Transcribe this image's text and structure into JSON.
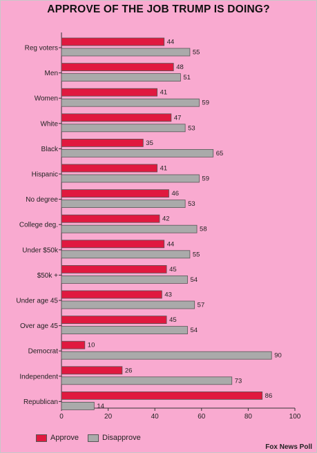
{
  "chart_data": {
    "type": "bar",
    "orientation": "horizontal",
    "title": "APPROVE OF THE JOB TRUMP IS DOING?",
    "source": "Fox News Poll",
    "categories": [
      "Reg voters",
      "Men",
      "Women",
      "White",
      "Black",
      "Hispanic",
      "No degree",
      "College deg.",
      "Under $50k",
      "$50k +",
      "Under age 45",
      "Over age 45",
      "Democrat",
      "Independent",
      "Republican"
    ],
    "series": [
      {
        "name": "Approve",
        "color": "#e0193f",
        "values": [
          44,
          48,
          41,
          47,
          35,
          41,
          46,
          42,
          44,
          45,
          43,
          45,
          10,
          26,
          86
        ]
      },
      {
        "name": "Disapprove",
        "color": "#aaaaaa",
        "values": [
          55,
          51,
          59,
          53,
          65,
          59,
          53,
          58,
          55,
          54,
          57,
          54,
          90,
          73,
          14
        ]
      }
    ],
    "xlim": [
      0,
      100
    ],
    "xticks": [
      0,
      20,
      40,
      60,
      80,
      100
    ],
    "legend_position": "bottom-left",
    "grid": false
  }
}
